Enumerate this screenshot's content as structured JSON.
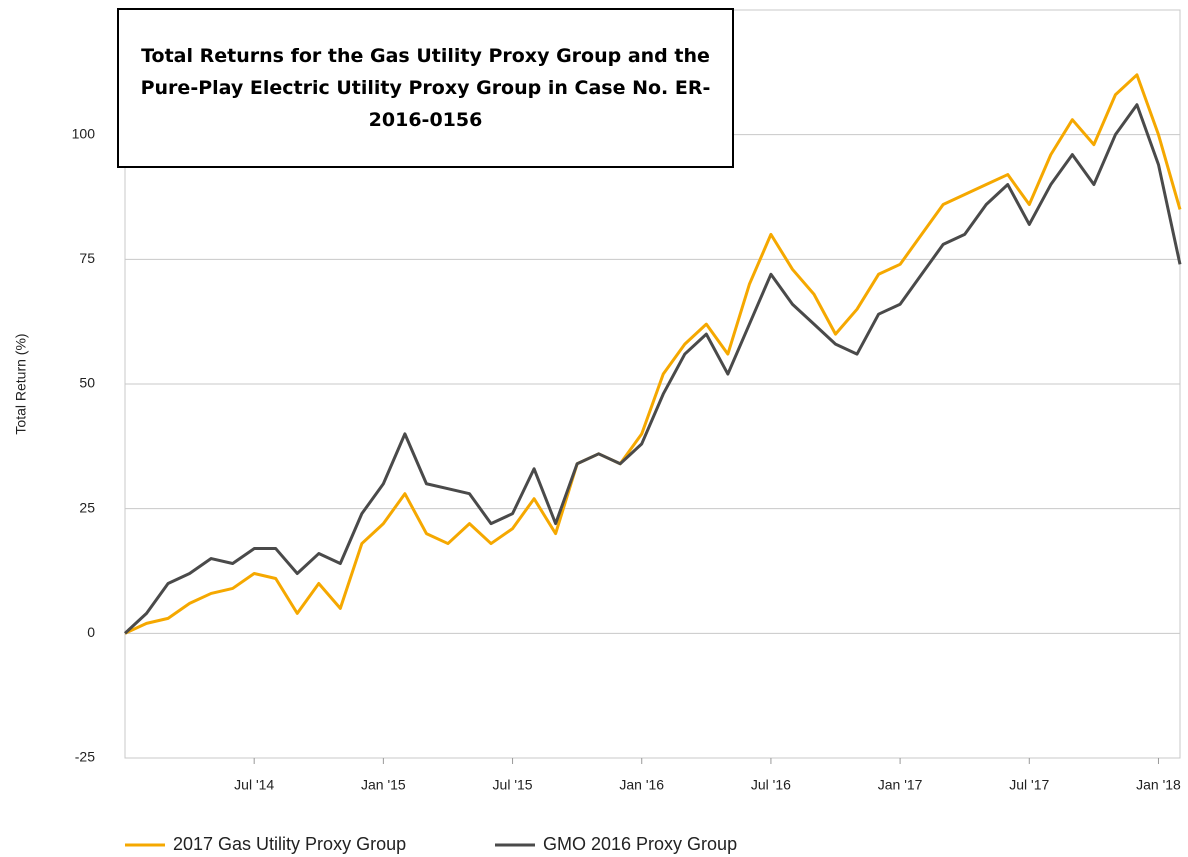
{
  "chart_data": {
    "type": "line",
    "title": "Total Returns for the Gas Utility Proxy Group and the Pure-Play Electric Utility Proxy Group in Case No. ER-2016-0156",
    "y_label": "Total Return (%)",
    "x": [
      "2014-01",
      "2014-02",
      "2014-03",
      "2014-04",
      "2014-05",
      "2014-06",
      "2014-07",
      "2014-08",
      "2014-09",
      "2014-10",
      "2014-11",
      "2014-12",
      "2015-01",
      "2015-02",
      "2015-03",
      "2015-04",
      "2015-05",
      "2015-06",
      "2015-07",
      "2015-08",
      "2015-09",
      "2015-10",
      "2015-11",
      "2015-12",
      "2016-01",
      "2016-02",
      "2016-03",
      "2016-04",
      "2016-05",
      "2016-06",
      "2016-07",
      "2016-08",
      "2016-09",
      "2016-10",
      "2016-11",
      "2016-12",
      "2017-01",
      "2017-02",
      "2017-03",
      "2017-04",
      "2017-05",
      "2017-06",
      "2017-07",
      "2017-08",
      "2017-09",
      "2017-10",
      "2017-11",
      "2017-12",
      "2018-01",
      "2018-02"
    ],
    "series": [
      {
        "name": "2017 Gas Utility Proxy Group",
        "color": "#f5a800",
        "values": [
          0,
          2,
          3,
          6,
          8,
          9,
          12,
          11,
          4,
          10,
          5,
          18,
          22,
          28,
          20,
          18,
          22,
          18,
          21,
          27,
          20,
          34,
          36,
          34,
          40,
          52,
          58,
          62,
          56,
          70,
          80,
          73,
          68,
          60,
          65,
          72,
          74,
          80,
          86,
          88,
          90,
          92,
          86,
          96,
          103,
          98,
          108,
          112,
          100,
          85
        ]
      },
      {
        "name": "GMO 2016 Proxy Group",
        "color": "#4a4a4a",
        "values": [
          0,
          4,
          10,
          12,
          15,
          14,
          17,
          17,
          12,
          16,
          14,
          24,
          30,
          40,
          30,
          29,
          28,
          22,
          24,
          33,
          22,
          34,
          36,
          34,
          38,
          48,
          56,
          60,
          52,
          62,
          72,
          66,
          62,
          58,
          56,
          64,
          66,
          72,
          78,
          80,
          86,
          90,
          82,
          90,
          96,
          90,
          100,
          106,
          94,
          74
        ]
      }
    ],
    "xlim": [
      "2014-01",
      "2018-02"
    ],
    "xticks": [
      {
        "value": "2014-07",
        "label": "Jul '14"
      },
      {
        "value": "2015-01",
        "label": "Jan '15"
      },
      {
        "value": "2015-07",
        "label": "Jul '15"
      },
      {
        "value": "2016-01",
        "label": "Jan '16"
      },
      {
        "value": "2016-07",
        "label": "Jul '16"
      },
      {
        "value": "2017-01",
        "label": "Jan '17"
      },
      {
        "value": "2017-07",
        "label": "Jul '17"
      },
      {
        "value": "2018-01",
        "label": "Jan '18"
      }
    ],
    "ylim": [
      -25,
      125
    ],
    "yticks": [
      -25,
      0,
      25,
      50,
      75,
      100
    ],
    "grid": true,
    "legend": "bottom"
  }
}
